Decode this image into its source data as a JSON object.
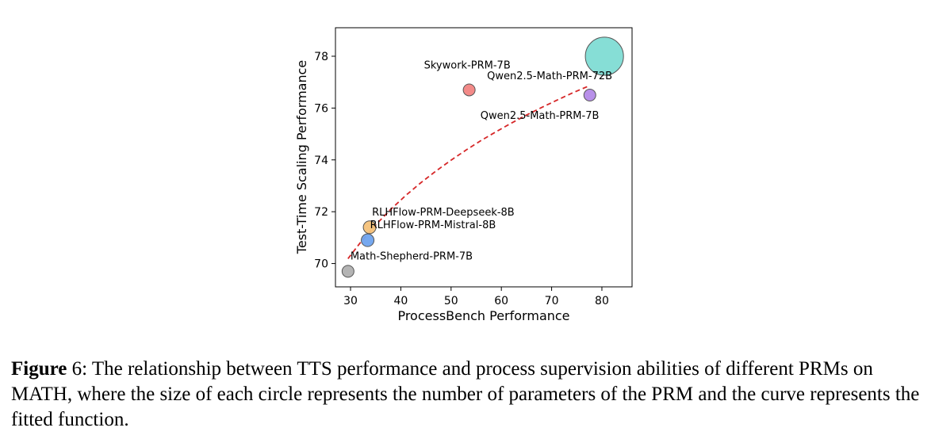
{
  "chart_data": {
    "type": "scatter",
    "xlabel": "ProcessBench Performance",
    "ylabel": "Test-Time Scaling Performance",
    "xlim": [
      27,
      86
    ],
    "ylim": [
      69.1,
      79.1
    ],
    "xticks": [
      30,
      40,
      50,
      60,
      70,
      80
    ],
    "yticks": [
      70,
      72,
      74,
      76,
      78
    ],
    "grid": false,
    "points": [
      {
        "name": "Math-Shepherd-PRM-7B",
        "x": 29.5,
        "y": 69.7,
        "params_b": 7,
        "color": "#b0b0b0"
      },
      {
        "name": "RLHFlow-PRM-Mistral-8B",
        "x": 33.4,
        "y": 70.9,
        "params_b": 8,
        "color": "#6fa3ee"
      },
      {
        "name": "RLHFlow-PRM-Deepseek-8B",
        "x": 33.8,
        "y": 71.4,
        "params_b": 8,
        "color": "#f5c27a"
      },
      {
        "name": "Skywork-PRM-7B",
        "x": 53.6,
        "y": 76.7,
        "params_b": 7,
        "color": "#f28482"
      },
      {
        "name": "Qwen2.5-Math-PRM-7B",
        "x": 77.6,
        "y": 76.5,
        "params_b": 7,
        "color": "#b48ae8"
      },
      {
        "name": "Qwen2.5-Math-PRM-72B",
        "x": 80.5,
        "y": 78.0,
        "params_b": 72,
        "color": "#7fdcd4"
      }
    ],
    "fit_curve": {
      "style": "dashed",
      "color": "#d62728",
      "x": [
        29.5,
        32,
        35,
        38,
        41,
        44,
        47,
        50,
        53,
        56,
        59,
        62,
        65,
        68,
        71,
        74,
        77.6
      ],
      "y": [
        70.19,
        70.82,
        71.49,
        72.09,
        72.63,
        73.12,
        73.57,
        73.99,
        74.38,
        74.75,
        75.09,
        75.42,
        75.73,
        76.02,
        76.3,
        76.57,
        76.87
      ]
    }
  },
  "caption": {
    "label": "Figure",
    "number": "6",
    "text": ": The relationship between TTS performance and process supervision abilities of different PRMs on MATH, where the size of each circle represents the number of parameters of the PRM and the curve represents the fitted function."
  }
}
